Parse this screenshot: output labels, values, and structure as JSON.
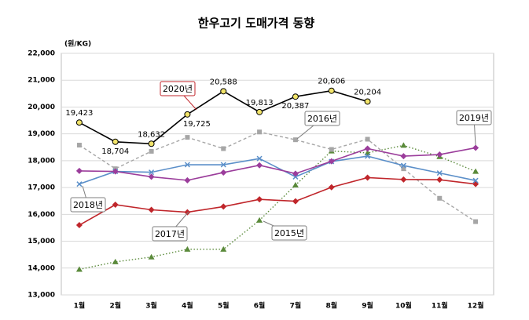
{
  "chart_data": {
    "type": "line",
    "title": "한우고기 도매가격 동향",
    "y_unit": "(원/KG)",
    "categories": [
      "1월",
      "2월",
      "3월",
      "4월",
      "5월",
      "6월",
      "7월",
      "8월",
      "9월",
      "10월",
      "11월",
      "12월"
    ],
    "ylim": [
      13000,
      22000
    ],
    "yticks": [
      {
        "value": 13000,
        "label": "13,000"
      },
      {
        "value": 14000,
        "label": "14,000"
      },
      {
        "value": 15000,
        "label": "15,000"
      },
      {
        "value": 16000,
        "label": "16,000"
      },
      {
        "value": 17000,
        "label": "17,000"
      },
      {
        "value": 18000,
        "label": "18,000"
      },
      {
        "value": 19000,
        "label": "19,000"
      },
      {
        "value": 20000,
        "label": "20,000"
      },
      {
        "value": 21000,
        "label": "21,000"
      },
      {
        "value": 22000,
        "label": "22,000"
      }
    ],
    "grid": true,
    "series": [
      {
        "name": "2015년",
        "color": "#5a8a3a",
        "line_style": "dotted",
        "marker": "triangle",
        "values": [
          13950,
          14230,
          14410,
          14700,
          14700,
          15780,
          17090,
          18360,
          18290,
          18570,
          18150,
          17600
        ]
      },
      {
        "name": "2016년",
        "color": "#a6a6a6",
        "line_style": "dashed",
        "marker": "square",
        "values": [
          18580,
          17700,
          18350,
          18870,
          18450,
          19070,
          18780,
          18420,
          18800,
          17700,
          16600,
          15730
        ]
      },
      {
        "name": "2017년",
        "color": "#c0262b",
        "line_style": "solid",
        "marker": "diamond",
        "values": [
          15600,
          16360,
          16170,
          16080,
          16290,
          16560,
          16490,
          17010,
          17370,
          17300,
          17290,
          17130
        ]
      },
      {
        "name": "2018년",
        "color": "#5b8fc9",
        "line_style": "solid",
        "marker": "x",
        "values": [
          17130,
          17600,
          17570,
          17850,
          17850,
          18080,
          17400,
          17970,
          18170,
          17820,
          17540,
          17260
        ]
      },
      {
        "name": "2019년",
        "color": "#9b3d9b",
        "line_style": "solid",
        "marker": "diamond",
        "values": [
          17620,
          17600,
          17400,
          17270,
          17560,
          17830,
          17520,
          17980,
          18450,
          18170,
          18230,
          18480
        ]
      },
      {
        "name": "2020년",
        "color": "#000000",
        "marker_color": "#f2e46a",
        "line_style": "solid",
        "marker": "circle",
        "values": [
          19423,
          18704,
          18632,
          19725,
          20588,
          19813,
          20387,
          20606,
          20204,
          null,
          null,
          null
        ],
        "value_labels": [
          "19,423",
          "18,704",
          "18,632",
          "19,725",
          "20,588",
          "19,813",
          "20,387",
          "20,606",
          "20,204",
          null,
          null,
          null
        ]
      }
    ]
  }
}
